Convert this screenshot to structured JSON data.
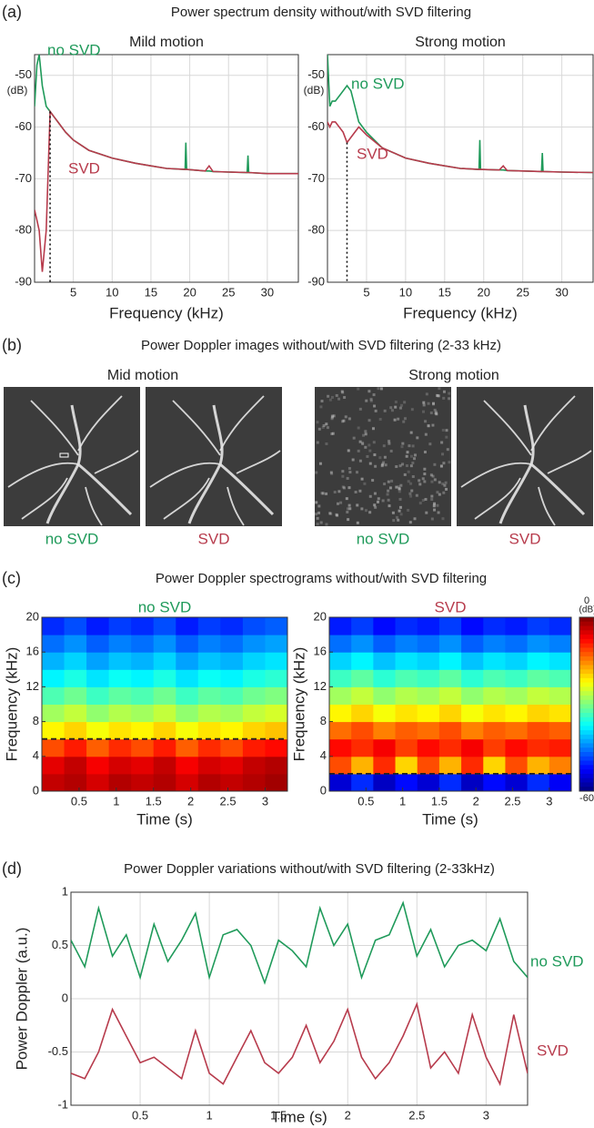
{
  "panels": [
    {
      "label": "(a)",
      "title": "Power spectrum density without/with SVD filtering"
    },
    {
      "label": "(b)",
      "title": "Power Doppler images without/with SVD filtering (2-33 kHz)"
    },
    {
      "label": "(c)",
      "title": "Power Doppler spectrograms without/with SVD filtering"
    },
    {
      "label": "(d)",
      "title": "Power Doppler variations without/with SVD filtering (2-33kHz)"
    }
  ],
  "images": {
    "groups": [
      {
        "title": "Mid motion",
        "captions": [
          "no SVD",
          "SVD"
        ]
      },
      {
        "title": "Strong motion",
        "captions": [
          "no SVD",
          "SVD"
        ]
      }
    ]
  },
  "chart_data": [
    {
      "type": "line",
      "title": "Mild motion",
      "xlabel": "Frequency (kHz)",
      "y_unit": "(dB)",
      "grid": true,
      "xlim": [
        0,
        34
      ],
      "ylim": [
        -90,
        -46
      ],
      "xticks": [
        5,
        10,
        15,
        20,
        25,
        30
      ],
      "yticks": [
        -50,
        -60,
        -70,
        -80,
        -90
      ],
      "cutoff": 2,
      "x": [
        0,
        0.3,
        0.6,
        1,
        1.5,
        2,
        2.5,
        3,
        4,
        5,
        7,
        10,
        13,
        15,
        17,
        19.4,
        19.5,
        19.6,
        22,
        22.5,
        23,
        25,
        27.4,
        27.5,
        27.6,
        30,
        34
      ],
      "series": [
        {
          "name": "no SVD",
          "color": "#1f9a5a",
          "values": [
            -56,
            -48,
            -46,
            -52,
            -56,
            -57,
            -58,
            -59,
            -61,
            -62.5,
            -64.5,
            -66,
            -67,
            -67.5,
            -68,
            -68.2,
            -63,
            -68.2,
            -68.5,
            -68.5,
            -68.6,
            -68.7,
            -68.8,
            -65.5,
            -68.8,
            -69,
            -69
          ]
        },
        {
          "name": "SVD",
          "color": "#b73b4c",
          "values": [
            -76,
            -78,
            -80,
            -88,
            -80,
            -57,
            -58,
            -59,
            -61,
            -62.5,
            -64.5,
            -66,
            -67,
            -67.5,
            -68,
            -68.2,
            -68.2,
            -68.2,
            -68.5,
            -67.5,
            -68.6,
            -68.7,
            -68.8,
            -68.8,
            -68.8,
            -69,
            -69
          ]
        }
      ]
    },
    {
      "type": "line",
      "title": "Strong motion",
      "xlabel": "Frequency (kHz)",
      "y_unit": "(dB)",
      "grid": true,
      "xlim": [
        0,
        34
      ],
      "ylim": [
        -90,
        -46
      ],
      "xticks": [
        5,
        10,
        15,
        20,
        25,
        30
      ],
      "yticks": [
        -50,
        -60,
        -70,
        -80,
        -90
      ],
      "cutoff": 2.5,
      "x": [
        0,
        0.3,
        0.6,
        1,
        1.5,
        2,
        2.5,
        3,
        4,
        5,
        7,
        10,
        13,
        15,
        17,
        19.4,
        19.5,
        19.6,
        22,
        22.5,
        23,
        25,
        27.4,
        27.5,
        27.6,
        30,
        34
      ],
      "series": [
        {
          "name": "no SVD",
          "color": "#1f9a5a",
          "values": [
            -46,
            -56,
            -55,
            -55,
            -54,
            -53,
            -52,
            -53,
            -59,
            -61,
            -64,
            -66,
            -67,
            -67.5,
            -68,
            -68.2,
            -62.5,
            -68.2,
            -68.3,
            -68.3,
            -68.4,
            -68.5,
            -68.6,
            -65,
            -68.6,
            -68.7,
            -68.8
          ]
        },
        {
          "name": "SVD",
          "color": "#b73b4c",
          "values": [
            -59,
            -60,
            -59,
            -59,
            -60,
            -61,
            -63,
            -62,
            -60,
            -61.5,
            -64,
            -66,
            -67,
            -67.5,
            -68,
            -68.2,
            -68.2,
            -68.2,
            -68.3,
            -67.5,
            -68.4,
            -68.5,
            -68.6,
            -68.6,
            -68.6,
            -68.7,
            -68.8
          ]
        }
      ]
    },
    {
      "type": "heatmap",
      "title": "no SVD",
      "title_color": "#1f9a5a",
      "xlabel": "Time (s)",
      "ylabel": "Frequency (kHz)",
      "xlim": [
        0,
        3.3
      ],
      "ylim": [
        0,
        20
      ],
      "xticks": [
        0.5,
        1,
        1.5,
        2,
        2.5,
        3
      ],
      "yticks": [
        0,
        4,
        8,
        12,
        16,
        20
      ],
      "clim": [
        -60,
        0
      ],
      "threshold": 6,
      "z": [
        [
          -4,
          -3,
          -5,
          -3,
          -4,
          -3,
          -5,
          -3,
          -4,
          -3,
          -2
        ],
        [
          -6,
          -4,
          -7,
          -5,
          -6,
          -4,
          -7,
          -5,
          -6,
          -4,
          -3
        ],
        [
          -12,
          -9,
          -13,
          -10,
          -12,
          -9,
          -13,
          -10,
          -12,
          -9,
          -8
        ],
        [
          -22,
          -20,
          -23,
          -21,
          -22,
          -20,
          -23,
          -21,
          -22,
          -20,
          -19
        ],
        [
          -28,
          -26,
          -29,
          -27,
          -28,
          -26,
          -29,
          -27,
          -28,
          -26,
          -25
        ],
        [
          -33,
          -31,
          -34,
          -32,
          -33,
          -31,
          -34,
          -32,
          -33,
          -31,
          -30
        ],
        [
          -38,
          -36,
          -39,
          -37,
          -38,
          -36,
          -39,
          -37,
          -38,
          -36,
          -35
        ],
        [
          -42,
          -40,
          -43,
          -41,
          -42,
          -40,
          -43,
          -41,
          -42,
          -40,
          -39
        ],
        [
          -46,
          -44,
          -47,
          -45,
          -46,
          -44,
          -47,
          -45,
          -46,
          -44,
          -43
        ],
        [
          -50,
          -48,
          -51,
          -49,
          -50,
          -48,
          -51,
          -49,
          -50,
          -48,
          -47
        ]
      ]
    },
    {
      "type": "heatmap",
      "title": "SVD",
      "title_color": "#b73b4c",
      "xlabel": "Time (s)",
      "ylabel": "Frequency (kHz)",
      "xlim": [
        0,
        3.3
      ],
      "ylim": [
        0,
        20
      ],
      "xticks": [
        0.5,
        1,
        1.5,
        2,
        2.5,
        3
      ],
      "yticks": [
        0,
        4,
        8,
        12,
        16,
        20
      ],
      "clim": [
        -60,
        0
      ],
      "threshold": 2,
      "colorbar": {
        "ticks": [
          0,
          -60
        ],
        "label": "(dB)"
      },
      "z": [
        [
          -55,
          -50,
          -56,
          -52,
          -55,
          -50,
          -56,
          -52,
          -55,
          -50,
          -53
        ],
        [
          -12,
          -18,
          -10,
          -20,
          -12,
          -18,
          -10,
          -20,
          -12,
          -18,
          -15
        ],
        [
          -8,
          -10,
          -7,
          -11,
          -8,
          -10,
          -7,
          -11,
          -8,
          -10,
          -9
        ],
        [
          -14,
          -12,
          -15,
          -13,
          -14,
          -12,
          -15,
          -13,
          -14,
          -12,
          -13
        ],
        [
          -22,
          -20,
          -23,
          -21,
          -22,
          -20,
          -23,
          -21,
          -22,
          -20,
          -21
        ],
        [
          -28,
          -26,
          -29,
          -27,
          -28,
          -26,
          -29,
          -27,
          -28,
          -26,
          -27
        ],
        [
          -34,
          -32,
          -35,
          -33,
          -34,
          -32,
          -35,
          -33,
          -34,
          -32,
          -33
        ],
        [
          -40,
          -38,
          -41,
          -39,
          -40,
          -38,
          -41,
          -39,
          -40,
          -38,
          -39
        ],
        [
          -46,
          -44,
          -47,
          -45,
          -46,
          -44,
          -47,
          -45,
          -46,
          -44,
          -45
        ],
        [
          -51,
          -49,
          -52,
          -50,
          -51,
          -49,
          -52,
          -50,
          -51,
          -49,
          -50
        ]
      ]
    },
    {
      "type": "line",
      "xlabel": "Time (s)",
      "ylabel": "Power Doppler (a.u.)",
      "grid": true,
      "xlim": [
        0,
        3.3
      ],
      "ylim": [
        -1,
        1
      ],
      "xticks": [
        0.5,
        1,
        1.5,
        2,
        2.5,
        3
      ],
      "yticks": [
        1,
        0.5,
        0,
        -0.5,
        -1
      ],
      "x": [
        0,
        0.1,
        0.2,
        0.3,
        0.4,
        0.5,
        0.6,
        0.7,
        0.8,
        0.9,
        1,
        1.1,
        1.2,
        1.3,
        1.4,
        1.5,
        1.6,
        1.7,
        1.8,
        1.9,
        2,
        2.1,
        2.2,
        2.3,
        2.4,
        2.5,
        2.6,
        2.7,
        2.8,
        2.9,
        3,
        3.1,
        3.2,
        3.3
      ],
      "series": [
        {
          "name": "no SVD",
          "color": "#1f9a5a",
          "values": [
            0.55,
            0.3,
            0.85,
            0.4,
            0.6,
            0.2,
            0.7,
            0.35,
            0.55,
            0.8,
            0.2,
            0.6,
            0.65,
            0.5,
            0.15,
            0.55,
            0.45,
            0.3,
            0.85,
            0.5,
            0.7,
            0.2,
            0.55,
            0.6,
            0.9,
            0.4,
            0.65,
            0.3,
            0.5,
            0.55,
            0.45,
            0.75,
            0.35,
            0.2
          ]
        },
        {
          "name": "SVD",
          "color": "#b73b4c",
          "values": [
            -0.7,
            -0.75,
            -0.5,
            -0.1,
            -0.35,
            -0.6,
            -0.55,
            -0.65,
            -0.75,
            -0.3,
            -0.7,
            -0.8,
            -0.55,
            -0.3,
            -0.6,
            -0.7,
            -0.55,
            -0.25,
            -0.6,
            -0.4,
            -0.1,
            -0.55,
            -0.75,
            -0.6,
            -0.35,
            -0.05,
            -0.65,
            -0.5,
            -0.7,
            -0.15,
            -0.55,
            -0.8,
            -0.15,
            -0.7
          ]
        }
      ]
    }
  ]
}
